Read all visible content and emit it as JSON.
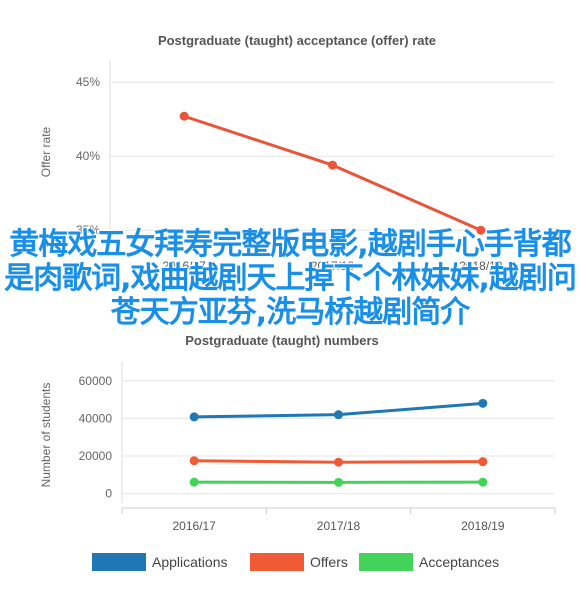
{
  "chart_data": [
    {
      "type": "line",
      "title": "Postgraduate (taught) acceptance (offer) rate",
      "ylabel": "Offer rate",
      "xlabel": "",
      "categories": [
        "2016/17",
        "2017/18",
        "2018/19"
      ],
      "yticks": [
        "35%",
        "40%",
        "45%"
      ],
      "ylim": [
        34,
        46.5
      ],
      "series": [
        {
          "values": [
            42.7,
            39.4,
            35.0
          ],
          "color": "#e8553a"
        }
      ],
      "grid": true
    },
    {
      "type": "line",
      "title": "Postgraduate (taught) numbers",
      "ylabel": "Number of students",
      "xlabel": "",
      "categories": [
        "2016/17",
        "2017/18",
        "2018/19"
      ],
      "yticks": [
        "0",
        "20000",
        "40000",
        "60000"
      ],
      "ylim": [
        -5000,
        70000
      ],
      "series": [
        {
          "name": "Applications",
          "values": [
            40800,
            42000,
            48000
          ],
          "color": "#1f77b4"
        },
        {
          "name": "Offers",
          "values": [
            17500,
            16700,
            17000
          ],
          "color": "#f05a35"
        },
        {
          "name": "Acceptances",
          "values": [
            6100,
            6000,
            6100
          ],
          "color": "#44d35a"
        }
      ],
      "legend": "bottom",
      "grid": true
    }
  ],
  "overlay_text": "黄梅戏五女拜寿完整版电影,越剧手心手背都是肉歌词,戏曲越剧天上掉下个林妹妹,越剧问苍天方亚芬,洗马桥越剧简介"
}
